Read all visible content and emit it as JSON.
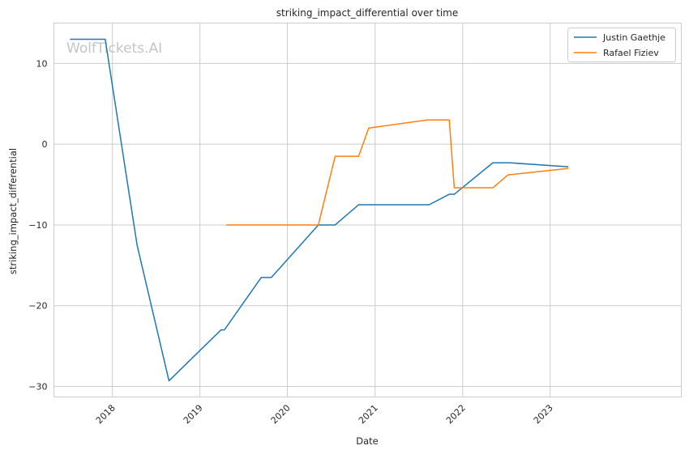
{
  "chart_data": {
    "type": "line",
    "title": "striking_impact_differential over time",
    "xlabel": "Date",
    "ylabel": "striking_impact_differential",
    "watermark": "WolfTickets.AI",
    "x_ticks": [
      "2018",
      "2019",
      "2020",
      "2021",
      "2022",
      "2023"
    ],
    "y_ticks": [
      10,
      0,
      -10,
      -20,
      -30
    ],
    "y_tick_labels": [
      "10",
      "0",
      "−10",
      "−20",
      "−30"
    ],
    "xlim": [
      "2017-05-02",
      "2024-07-01"
    ],
    "ylim": [
      -31.3,
      15
    ],
    "grid": true,
    "legend_position": "top-right",
    "series": [
      {
        "name": "Justin Gaethje",
        "color": "#1f77b4",
        "points": [
          [
            "2017-07-08",
            13
          ],
          [
            "2017-12-02",
            13
          ],
          [
            "2018-04-14",
            -12.5
          ],
          [
            "2018-08-25",
            -29.3
          ],
          [
            "2019-03-30",
            -23
          ],
          [
            "2019-04-13",
            -23
          ],
          [
            "2019-09-14",
            -16.5
          ],
          [
            "2019-10-26",
            -16.5
          ],
          [
            "2020-05-09",
            -10
          ],
          [
            "2020-07-18",
            -10
          ],
          [
            "2020-10-24",
            -7.5
          ],
          [
            "2021-08-14",
            -7.5
          ],
          [
            "2021-11-06",
            -6.2
          ],
          [
            "2021-11-27",
            -6.2
          ],
          [
            "2022-05-07",
            -2.3
          ],
          [
            "2022-07-16",
            -2.3
          ],
          [
            "2023-03-18",
            -2.8
          ]
        ]
      },
      {
        "name": "Rafael Fiziev",
        "color": "#ff7f0e",
        "points": [
          [
            "2019-04-20",
            -10
          ],
          [
            "2020-05-09",
            -10
          ],
          [
            "2020-07-18",
            -1.5
          ],
          [
            "2020-10-24",
            -1.5
          ],
          [
            "2020-12-05",
            2
          ],
          [
            "2021-08-07",
            3
          ],
          [
            "2021-11-06",
            3
          ],
          [
            "2021-11-27",
            -5.4
          ],
          [
            "2022-05-07",
            -5.4
          ],
          [
            "2022-07-09",
            -3.8
          ],
          [
            "2023-03-18",
            -3
          ]
        ]
      }
    ]
  }
}
